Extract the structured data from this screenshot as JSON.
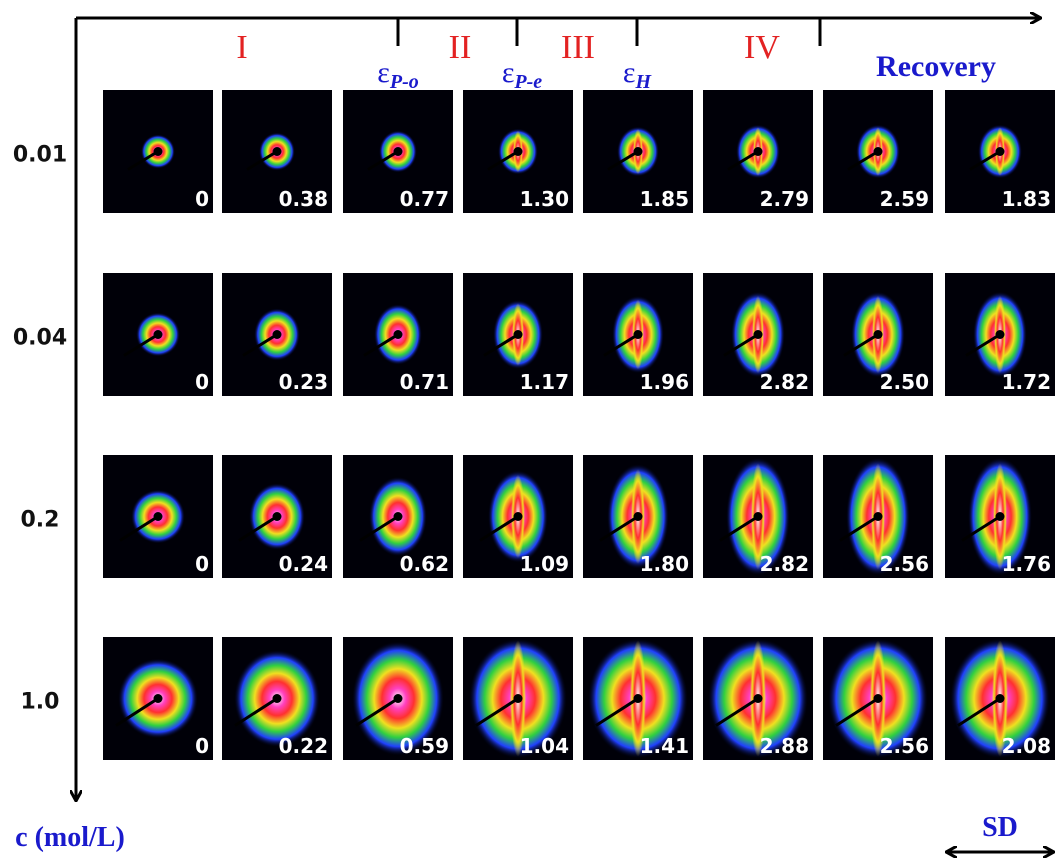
{
  "stages": [
    "I",
    "II",
    "III",
    "IV"
  ],
  "strain_markers": [
    {
      "symbol": "ε",
      "subscript": "P-o"
    },
    {
      "symbol": "ε",
      "subscript": "P-e"
    },
    {
      "symbol": "ε",
      "subscript": "H"
    }
  ],
  "recovery_label": "Recovery",
  "rows": [
    {
      "label": "0.01",
      "values": [
        "0",
        "0.38",
        "0.77",
        "1.30",
        "1.85",
        "2.79",
        "2.59",
        "1.83"
      ]
    },
    {
      "label": "0.04",
      "values": [
        "0",
        "0.23",
        "0.71",
        "1.17",
        "1.96",
        "2.82",
        "2.50",
        "1.72"
      ]
    },
    {
      "label": "0.2",
      "values": [
        "0",
        "0.24",
        "0.62",
        "1.09",
        "1.80",
        "2.82",
        "2.56",
        "1.76"
      ]
    },
    {
      "label": "1.0",
      "values": [
        "0",
        "0.22",
        "0.59",
        "1.04",
        "1.41",
        "2.88",
        "2.56",
        "2.08"
      ]
    }
  ],
  "y_axis_label": "c (mol/L)",
  "sd_label": "SD"
}
